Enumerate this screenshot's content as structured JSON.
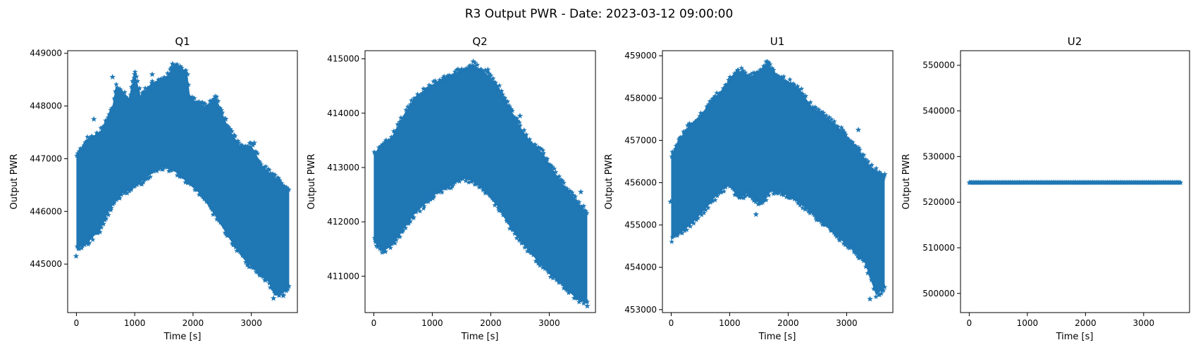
{
  "figure": {
    "title": "R3 Output PWR - Date: 2023-03-12 09:00:00",
    "marker_color": "#1f77b4"
  },
  "chart_data": [
    {
      "type": "scatter",
      "title": "Q1",
      "xlabel": "Time [s]",
      "ylabel": "Output PWR",
      "marker": "star",
      "xlim": [
        -150,
        3790
      ],
      "ylim": [
        444080,
        449050
      ],
      "xticks": [
        0,
        1000,
        2000,
        3000
      ],
      "yticks": [
        445000,
        446000,
        447000,
        448000,
        449000
      ],
      "upper_envelope": [
        [
          0,
          447050
        ],
        [
          150,
          447350
        ],
        [
          400,
          447500
        ],
        [
          620,
          448000
        ],
        [
          680,
          448400
        ],
        [
          900,
          448150
        ],
        [
          1000,
          448650
        ],
        [
          1100,
          448200
        ],
        [
          1300,
          448450
        ],
        [
          1500,
          448500
        ],
        [
          1700,
          448800
        ],
        [
          1900,
          448650
        ],
        [
          1950,
          448150
        ],
        [
          2200,
          448000
        ],
        [
          2400,
          448150
        ],
        [
          2600,
          447600
        ],
        [
          2800,
          447250
        ],
        [
          3000,
          447250
        ],
        [
          3200,
          446850
        ],
        [
          3400,
          446650
        ],
        [
          3620,
          446450
        ]
      ],
      "lower_envelope": [
        [
          0,
          445300
        ],
        [
          150,
          445350
        ],
        [
          400,
          445650
        ],
        [
          600,
          446100
        ],
        [
          800,
          446350
        ],
        [
          1000,
          446450
        ],
        [
          1200,
          446650
        ],
        [
          1500,
          446850
        ],
        [
          1700,
          446750
        ],
        [
          1900,
          446550
        ],
        [
          2100,
          446350
        ],
        [
          2300,
          446050
        ],
        [
          2500,
          445700
        ],
        [
          2700,
          445350
        ],
        [
          2900,
          445050
        ],
        [
          3100,
          444850
        ],
        [
          3300,
          444650
        ],
        [
          3400,
          444400
        ],
        [
          3550,
          444450
        ],
        [
          3650,
          444550
        ]
      ],
      "outliers": [
        [
          -5,
          445150
        ],
        [
          300,
          447750
        ],
        [
          620,
          448550
        ],
        [
          1000,
          448600
        ],
        [
          1300,
          448600
        ],
        [
          1650,
          448800
        ],
        [
          1780,
          448750
        ],
        [
          2380,
          448180
        ],
        [
          2560,
          447750
        ],
        [
          3050,
          447300
        ],
        [
          3380,
          444350
        ],
        [
          3550,
          444400
        ]
      ]
    },
    {
      "type": "scatter",
      "title": "Q2",
      "xlabel": "Time [s]",
      "ylabel": "Output PWR",
      "marker": "star",
      "xlim": [
        -150,
        3790
      ],
      "ylim": [
        410330,
        415150
      ],
      "xticks": [
        0,
        1000,
        2000,
        3000
      ],
      "yticks": [
        411000,
        412000,
        413000,
        414000,
        415000
      ],
      "upper_envelope": [
        [
          0,
          413250
        ],
        [
          150,
          413450
        ],
        [
          300,
          413550
        ],
        [
          500,
          413950
        ],
        [
          700,
          414300
        ],
        [
          900,
          414450
        ],
        [
          1100,
          414600
        ],
        [
          1300,
          414700
        ],
        [
          1500,
          414800
        ],
        [
          1700,
          414900
        ],
        [
          1900,
          414750
        ],
        [
          2100,
          414550
        ],
        [
          2300,
          414150
        ],
        [
          2500,
          413750
        ],
        [
          2700,
          413450
        ],
        [
          2900,
          413250
        ],
        [
          3100,
          412900
        ],
        [
          3300,
          412600
        ],
        [
          3500,
          412350
        ],
        [
          3650,
          412150
        ]
      ],
      "lower_envelope": [
        [
          0,
          411650
        ],
        [
          150,
          411450
        ],
        [
          300,
          411550
        ],
        [
          500,
          411850
        ],
        [
          700,
          412150
        ],
        [
          900,
          412350
        ],
        [
          1100,
          412550
        ],
        [
          1300,
          412650
        ],
        [
          1500,
          412800
        ],
        [
          1700,
          412750
        ],
        [
          1900,
          412550
        ],
        [
          2100,
          412300
        ],
        [
          2300,
          411950
        ],
        [
          2500,
          411650
        ],
        [
          2700,
          411400
        ],
        [
          2900,
          411150
        ],
        [
          3100,
          410950
        ],
        [
          3300,
          410750
        ],
        [
          3500,
          410550
        ],
        [
          3650,
          410500
        ]
      ],
      "outliers": [
        [
          1700,
          414950
        ],
        [
          1950,
          414800
        ],
        [
          2500,
          413950
        ],
        [
          3540,
          412550
        ],
        [
          3650,
          410450
        ]
      ]
    },
    {
      "type": "scatter",
      "title": "U1",
      "xlabel": "Time [s]",
      "ylabel": "Output PWR",
      "marker": "star",
      "xlim": [
        -150,
        3790
      ],
      "ylim": [
        452930,
        459120
      ],
      "xticks": [
        0,
        1000,
        2000,
        3000
      ],
      "yticks": [
        453000,
        454000,
        455000,
        456000,
        457000,
        458000,
        459000
      ],
      "upper_envelope": [
        [
          0,
          456650
        ],
        [
          100,
          456950
        ],
        [
          300,
          457350
        ],
        [
          500,
          457600
        ],
        [
          700,
          457950
        ],
        [
          900,
          458250
        ],
        [
          1050,
          458550
        ],
        [
          1200,
          458650
        ],
        [
          1350,
          458500
        ],
        [
          1500,
          458650
        ],
        [
          1650,
          458850
        ],
        [
          1800,
          458550
        ],
        [
          2000,
          458400
        ],
        [
          2200,
          458200
        ],
        [
          2400,
          457800
        ],
        [
          2600,
          457600
        ],
        [
          2800,
          457400
        ],
        [
          3000,
          457100
        ],
        [
          3200,
          456800
        ],
        [
          3400,
          456400
        ],
        [
          3650,
          456150
        ]
      ],
      "lower_envelope": [
        [
          0,
          454650
        ],
        [
          200,
          454850
        ],
        [
          400,
          455100
        ],
        [
          600,
          455400
        ],
        [
          800,
          455750
        ],
        [
          1000,
          455950
        ],
        [
          1150,
          455600
        ],
        [
          1300,
          455750
        ],
        [
          1450,
          455550
        ],
        [
          1550,
          455500
        ],
        [
          1700,
          455800
        ],
        [
          1900,
          455750
        ],
        [
          2100,
          455600
        ],
        [
          2300,
          455400
        ],
        [
          2500,
          455150
        ],
        [
          2700,
          454900
        ],
        [
          2900,
          454650
        ],
        [
          3100,
          454400
        ],
        [
          3300,
          454150
        ],
        [
          3500,
          453350
        ],
        [
          3650,
          453500
        ]
      ],
      "outliers": [
        [
          -10,
          455550
        ],
        [
          1450,
          455250
        ],
        [
          1650,
          458850
        ],
        [
          2600,
          457650
        ],
        [
          3200,
          457250
        ],
        [
          3400,
          453250
        ],
        [
          3650,
          456200
        ]
      ]
    },
    {
      "type": "scatter",
      "title": "U2",
      "xlabel": "Time [s]",
      "ylabel": "Output PWR",
      "marker": "star",
      "xlim": [
        -150,
        3790
      ],
      "ylim": [
        495800,
        553200
      ],
      "xticks": [
        0,
        1000,
        2000,
        3000
      ],
      "yticks": [
        500000,
        510000,
        520000,
        530000,
        540000,
        550000
      ],
      "constant_value": 524300,
      "x_range": [
        0,
        3640
      ]
    }
  ]
}
